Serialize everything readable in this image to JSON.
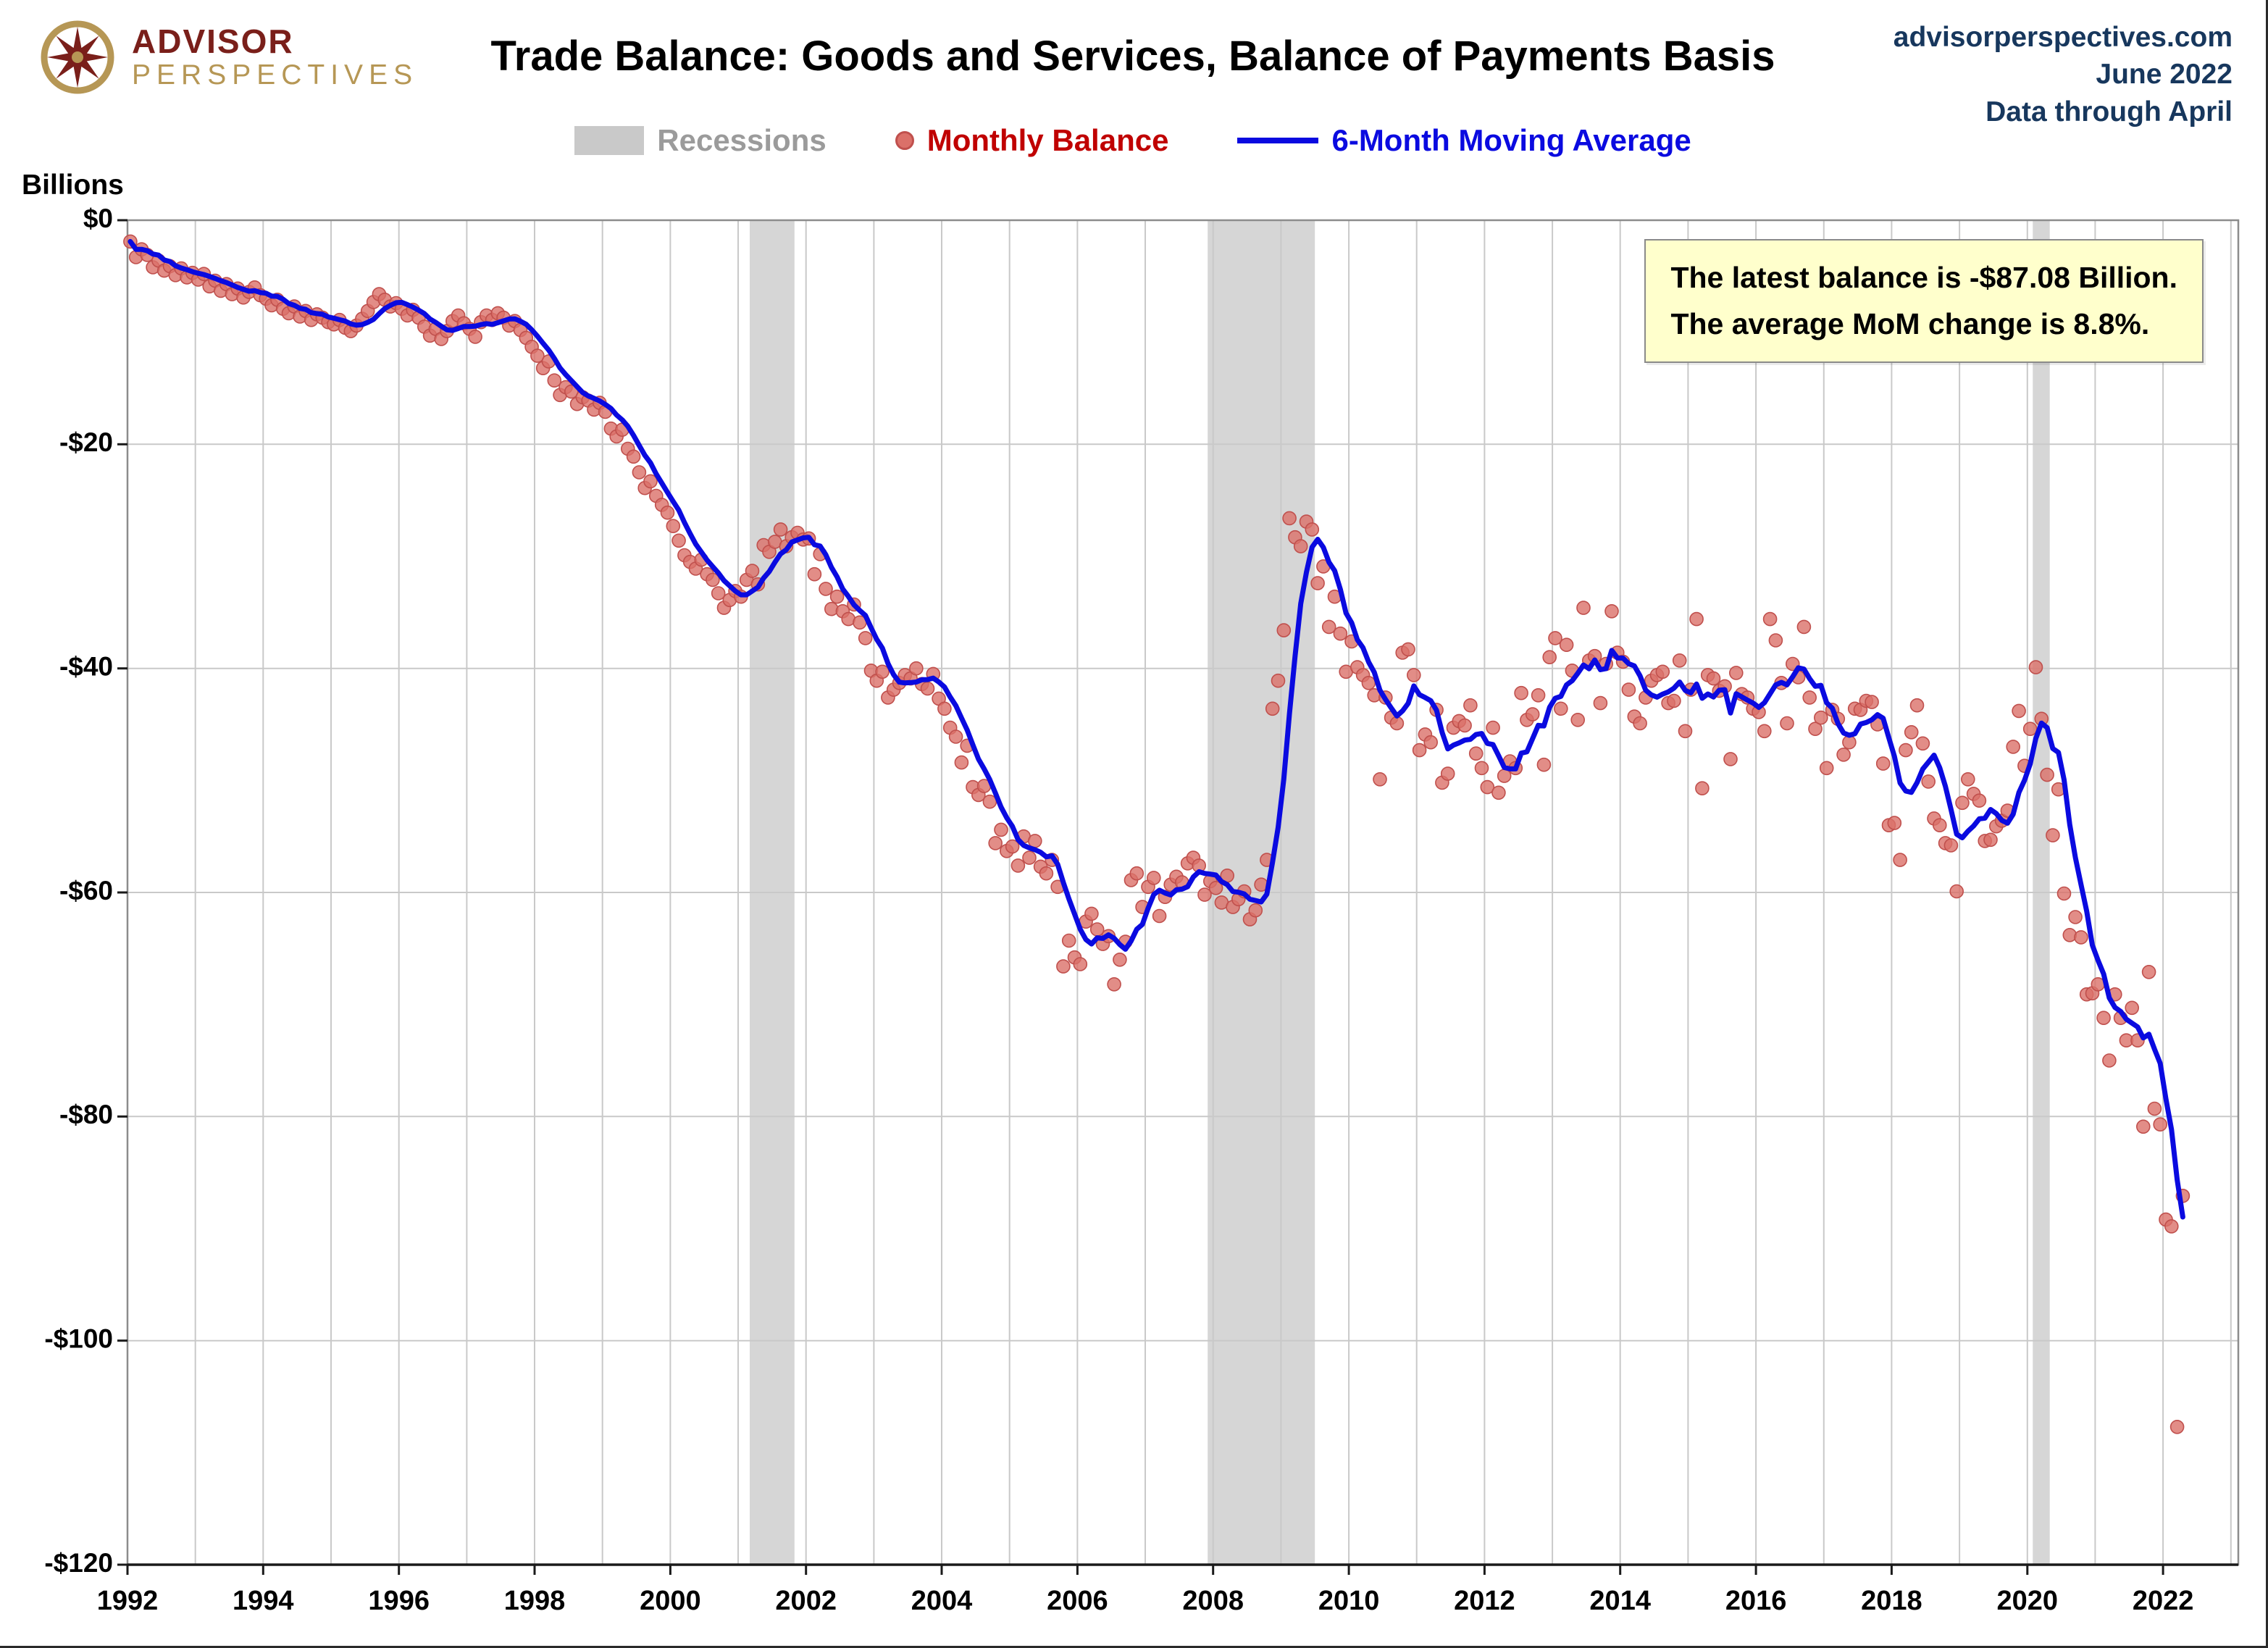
{
  "header": {
    "logo": {
      "line1": "ADVISOR",
      "line2": "PERSPECTIVES"
    },
    "title": "Trade Balance: Goods and Services, Balance of Payments Basis",
    "source": {
      "site": "advisorperspectives.com",
      "date": "June 2022",
      "note": "Data through April"
    }
  },
  "legend": {
    "recessions": "Recessions",
    "monthly": "Monthly Balance",
    "ma": "6-Month Moving Average"
  },
  "callout": {
    "line1": "The latest balance is -$87.08 Billion.",
    "line2": "The average MoM change is 8.8%."
  },
  "chart_data": {
    "type": "scatter",
    "title": "Trade Balance: Goods and Services, Balance of Payments Basis",
    "y_axis_title": "Billions",
    "x_start": 1992,
    "points_per_year": 12,
    "x_ticks": [
      1992,
      1994,
      1996,
      1998,
      2000,
      2002,
      2004,
      2006,
      2008,
      2010,
      2012,
      2014,
      2016,
      2018,
      2020,
      2022
    ],
    "x_grid_end": 2023,
    "y_min": -120,
    "y_ticks": [
      0,
      -20,
      -40,
      -60,
      -80,
      -100,
      -120
    ],
    "y_tick_labels": [
      "$0",
      "-$20",
      "-$40",
      "-$60",
      "-$80",
      "-$100",
      "-$120"
    ],
    "ma_window": 6,
    "latest_balance": -87.08,
    "avg_mom_change_pct": 8.8,
    "recessions": [
      [
        2001.17,
        2001.83
      ],
      [
        2007.92,
        2009.5
      ],
      [
        2020.08,
        2020.33
      ]
    ],
    "monthly_balance": [
      -1.9,
      -3.3,
      -2.6,
      -3.1,
      -4.2,
      -3.6,
      -4.5,
      -4.1,
      -4.9,
      -4.3,
      -5.1,
      -4.7,
      -5.3,
      -4.8,
      -5.9,
      -5.4,
      -6.3,
      -5.7,
      -6.6,
      -6.1,
      -6.9,
      -6.4,
      -6.0,
      -6.7,
      -7.0,
      -7.6,
      -7.1,
      -7.9,
      -8.3,
      -7.7,
      -8.6,
      -8.1,
      -8.9,
      -8.4,
      -8.7,
      -9.1,
      -9.3,
      -8.9,
      -9.6,
      -9.9,
      -9.4,
      -8.8,
      -8.1,
      -7.3,
      -6.6,
      -7.1,
      -7.7,
      -7.4,
      -7.9,
      -8.5,
      -8.0,
      -8.7,
      -9.5,
      -10.3,
      -9.7,
      -10.6,
      -9.9,
      -9.0,
      -8.5,
      -9.2,
      -9.7,
      -10.4,
      -9.1,
      -8.5,
      -8.9,
      -8.3,
      -8.7,
      -9.4,
      -9.0,
      -9.8,
      -10.5,
      -11.3,
      -12.1,
      -13.2,
      -12.6,
      -14.3,
      -15.6,
      -14.9,
      -15.3,
      -16.4,
      -15.8,
      -16.1,
      -16.9,
      -16.3,
      -17.1,
      -18.6,
      -19.3,
      -18.7,
      -20.4,
      -21.1,
      -22.5,
      -23.9,
      -23.3,
      -24.6,
      -25.4,
      -26.1,
      -27.3,
      -28.6,
      -29.9,
      -30.5,
      -31.1,
      -30.3,
      -31.6,
      -32.1,
      -33.3,
      -34.6,
      -33.9,
      -33.1,
      -33.6,
      -32.1,
      -31.3,
      -32.5,
      -29.0,
      -29.6,
      -28.7,
      -27.6,
      -29.1,
      -28.3,
      -27.9,
      -28.5,
      -28.4,
      -31.6,
      -29.8,
      -32.9,
      -34.7,
      -33.6,
      -34.9,
      -35.6,
      -34.3,
      -35.9,
      -37.3,
      -40.2,
      -41.1,
      -40.3,
      -42.6,
      -41.9,
      -41.3,
      -40.6,
      -40.9,
      -40.0,
      -41.4,
      -41.8,
      -40.5,
      -42.7,
      -43.6,
      -45.3,
      -46.1,
      -48.4,
      -46.9,
      -50.6,
      -51.3,
      -50.5,
      -51.9,
      -55.6,
      -54.4,
      -56.3,
      -55.9,
      -57.6,
      -55.0,
      -56.9,
      -55.4,
      -57.7,
      -58.3,
      -57.1,
      -59.5,
      -66.6,
      -64.3,
      -65.8,
      -66.4,
      -62.6,
      -61.9,
      -63.3,
      -64.6,
      -63.9,
      -68.2,
      -66.0,
      -64.4,
      -58.9,
      -58.3,
      -61.3,
      -59.5,
      -58.7,
      -62.1,
      -60.4,
      -59.3,
      -58.6,
      -59.1,
      -57.4,
      -56.9,
      -57.6,
      -60.2,
      -59.0,
      -59.6,
      -60.9,
      -58.5,
      -61.3,
      -60.6,
      -59.9,
      -62.4,
      -61.6,
      -59.3,
      -57.1,
      -43.6,
      -41.1,
      -36.6,
      -26.6,
      -28.3,
      -29.1,
      -26.9,
      -27.6,
      -32.4,
      -30.9,
      -36.3,
      -33.6,
      -36.9,
      -40.3,
      -37.6,
      -39.9,
      -40.6,
      -41.3,
      -42.4,
      -49.9,
      -42.6,
      -44.4,
      -44.9,
      -38.6,
      -38.3,
      -40.6,
      -47.3,
      -45.9,
      -46.6,
      -43.7,
      -50.2,
      -49.4,
      -45.3,
      -44.7,
      -45.1,
      -43.3,
      -47.6,
      -48.9,
      -50.6,
      -45.3,
      -51.1,
      -49.6,
      -48.3,
      -48.9,
      -42.2,
      -44.6,
      -44.1,
      -42.4,
      -48.6,
      -39.0,
      -37.3,
      -43.6,
      -37.9,
      -40.2,
      -44.6,
      -34.6,
      -39.3,
      -38.9,
      -43.1,
      -39.6,
      -34.9,
      -38.6,
      -39.4,
      -41.9,
      -44.3,
      -44.9,
      -42.6,
      -41.1,
      -40.6,
      -40.3,
      -43.1,
      -42.9,
      -39.3,
      -45.6,
      -41.9,
      -35.6,
      -50.7,
      -40.6,
      -40.9,
      -42.0,
      -41.6,
      -48.1,
      -40.4,
      -42.3,
      -42.6,
      -43.6,
      -43.9,
      -45.6,
      -35.6,
      -37.5,
      -41.3,
      -44.9,
      -39.6,
      -40.8,
      -36.3,
      -42.6,
      -45.4,
      -44.4,
      -48.9,
      -43.7,
      -44.5,
      -47.7,
      -46.6,
      -43.6,
      -43.7,
      -42.9,
      -43.0,
      -45.0,
      -48.5,
      -54.0,
      -53.8,
      -57.1,
      -47.3,
      -45.7,
      -43.3,
      -46.7,
      -50.1,
      -53.4,
      -54.0,
      -55.6,
      -55.8,
      -59.9,
      -52.0,
      -49.9,
      -51.2,
      -51.8,
      -55.4,
      -55.3,
      -54.1,
      -53.6,
      -52.7,
      -47.0,
      -43.8,
      -48.7,
      -45.4,
      -39.9,
      -44.5,
      -49.5,
      -54.9,
      -50.8,
      -60.1,
      -63.8,
      -62.2,
      -64.0,
      -69.1,
      -69.0,
      -68.2,
      -71.2,
      -75.0,
      -69.1,
      -71.2,
      -73.2,
      -70.3,
      -73.2,
      -80.9,
      -67.1,
      -79.3,
      -80.7,
      -89.2,
      -89.8,
      -107.7,
      -87.08
    ],
    "colors": {
      "dot": "#db7069",
      "dot_edge": "#c0504d",
      "line": "#0a0ae0",
      "recession": "#d6d6d6",
      "grid": "#c9c9c9",
      "border": "#8c8c8c",
      "axis": "#1a1a1a"
    }
  }
}
